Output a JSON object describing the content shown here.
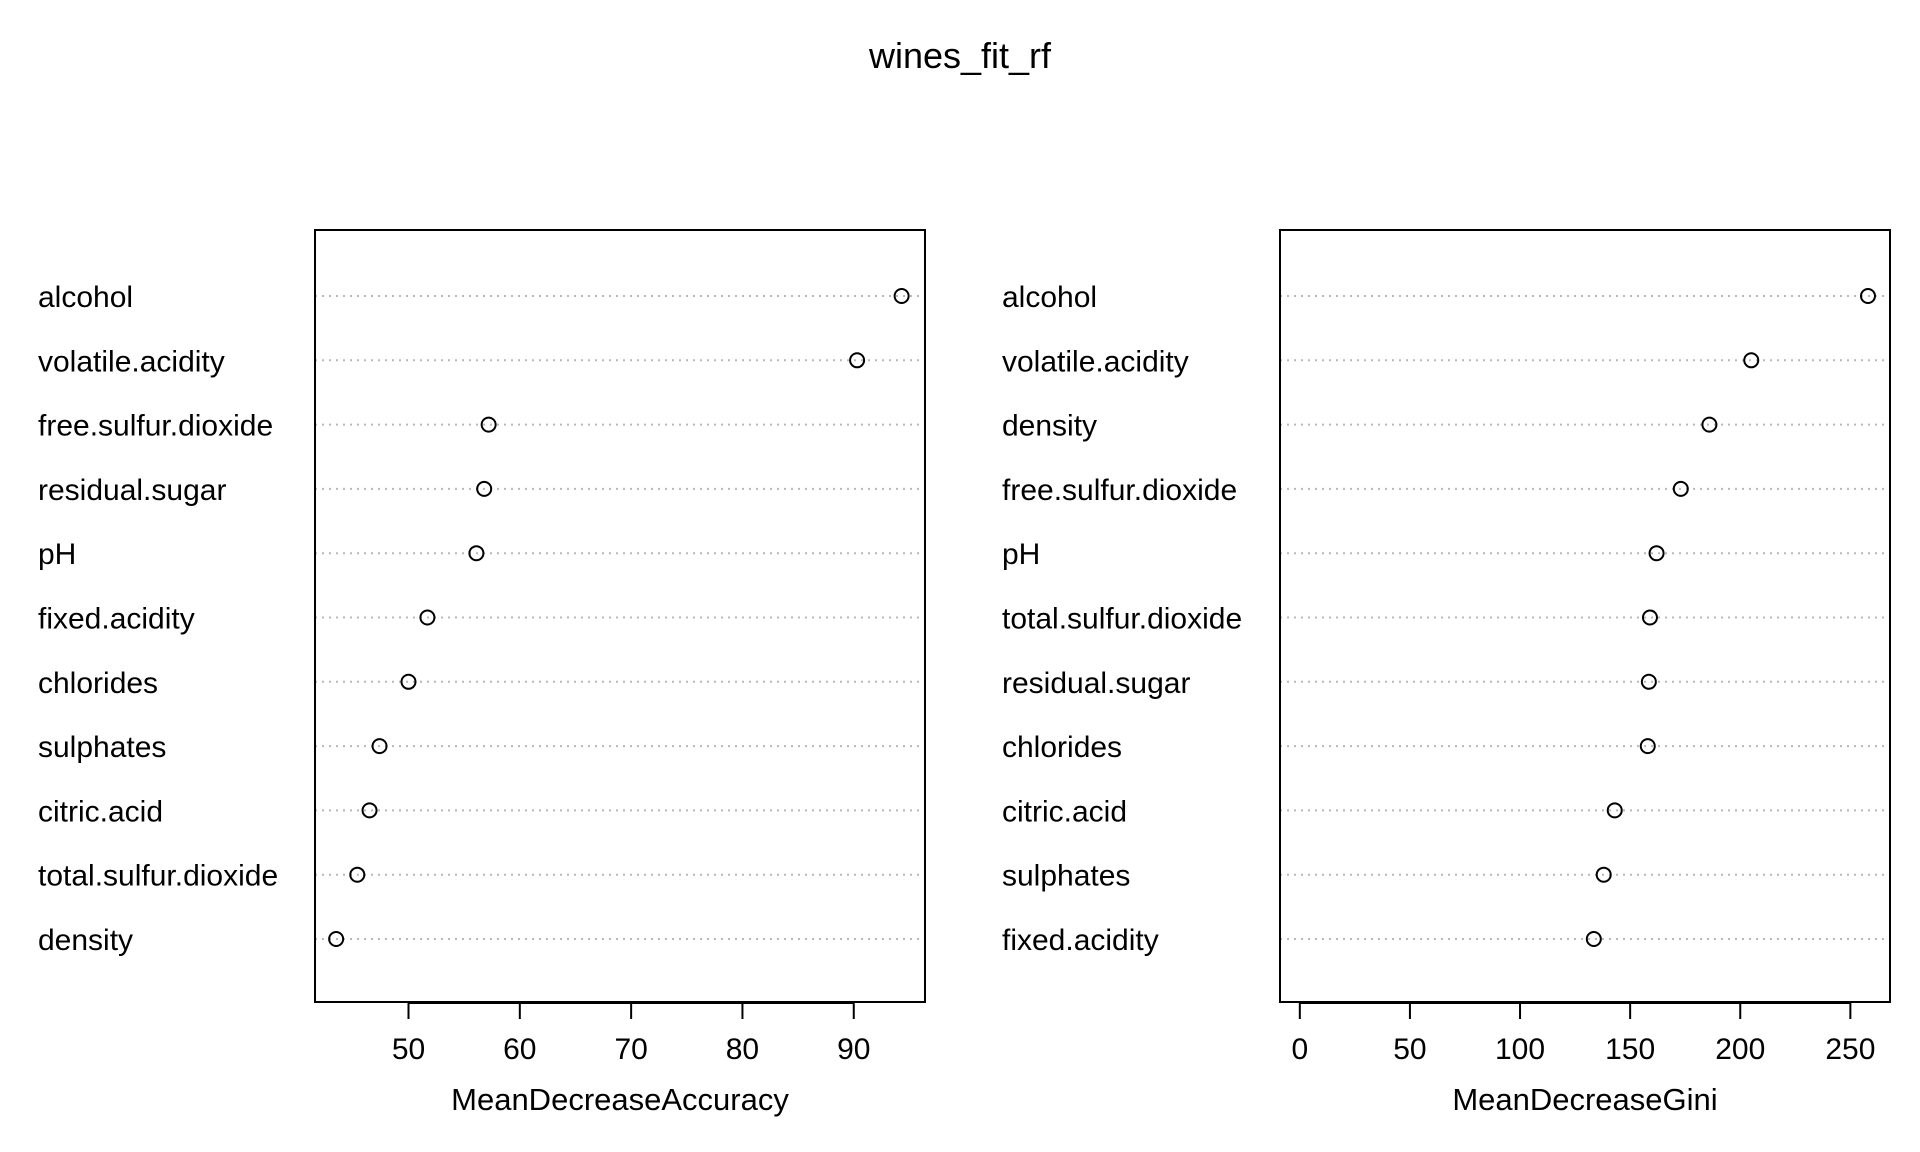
{
  "figure": {
    "title": "wines_fit_rf"
  },
  "chart_data": [
    {
      "type": "scatter",
      "style": "dotchart",
      "xlabel": "MeanDecreaseAccuracy",
      "xlim": [
        41.6,
        96.4
      ],
      "ticks": [
        50,
        60,
        70,
        80,
        90
      ],
      "grid": "dotted horizontal",
      "categories": [
        "alcohol",
        "volatile.acidity",
        "free.sulfur.dioxide",
        "residual.sugar",
        "pH",
        "fixed.acidity",
        "chlorides",
        "sulphates",
        "citric.acid",
        "total.sulfur.dioxide",
        "density"
      ],
      "values": [
        94.3,
        90.3,
        57.2,
        56.8,
        56.1,
        51.7,
        50.0,
        47.4,
        46.5,
        45.4,
        43.5
      ]
    },
    {
      "type": "scatter",
      "style": "dotchart",
      "xlabel": "MeanDecreaseGini",
      "xlim": [
        -9,
        268
      ],
      "ticks": [
        0,
        50,
        100,
        150,
        200,
        250
      ],
      "grid": "dotted horizontal",
      "categories": [
        "alcohol",
        "volatile.acidity",
        "density",
        "free.sulfur.dioxide",
        "pH",
        "total.sulfur.dioxide",
        "residual.sugar",
        "chlorides",
        "citric.acid",
        "sulphates",
        "fixed.acidity"
      ],
      "values": [
        258,
        205,
        186,
        173,
        162,
        159,
        158.5,
        158,
        143,
        138,
        133.5
      ]
    }
  ]
}
